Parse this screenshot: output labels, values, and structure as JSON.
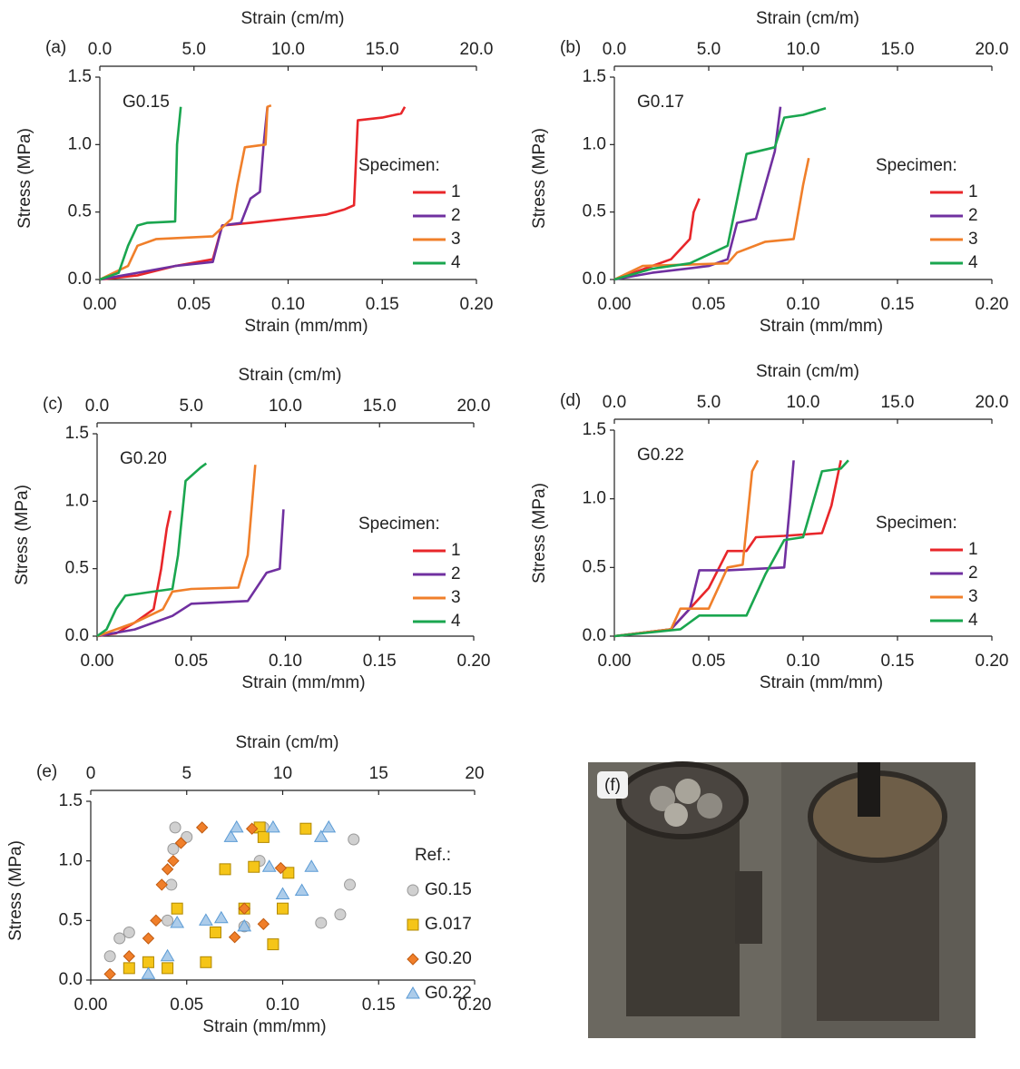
{
  "chart_data": [
    {
      "type": "line",
      "panel_label": "(a)",
      "annotation": "G0.15",
      "title_top": "Strain (cm/m)",
      "xlabel": "Strain (mm/mm)",
      "ylabel": "Stress (MPa)",
      "legend_title": "Specimen:",
      "xlim": [
        0,
        0.2
      ],
      "xticks": [
        {
          "value": 0,
          "label": "0.00"
        },
        0.05,
        {
          "value": 0.1,
          "label": "0.10"
        },
        0.15,
        {
          "value": 0.2,
          "label": "0.20"
        }
      ],
      "x2lim": [
        0,
        20
      ],
      "x2ticks": [
        {
          "value": 0,
          "label": "0.0"
        },
        {
          "value": 5,
          "label": "5.0"
        },
        {
          "value": 10,
          "label": "10.0"
        },
        {
          "value": 15,
          "label": "15.0"
        },
        {
          "value": 20,
          "label": "20.0"
        }
      ],
      "ylim": [
        0,
        1.5
      ],
      "yticks": [
        {
          "value": 0,
          "label": "0.0"
        },
        0.5,
        {
          "value": 1,
          "label": "1.0"
        },
        1.5
      ],
      "series": [
        {
          "name": "1",
          "color": "#e8262a",
          "x": [
            0,
            0.02,
            0.04,
            0.06,
            0.065,
            0.08,
            0.1,
            0.12,
            0.13,
            0.135,
            0.137,
            0.15,
            0.16,
            0.162
          ],
          "values": [
            0,
            0.03,
            0.1,
            0.15,
            0.4,
            0.42,
            0.45,
            0.48,
            0.52,
            0.55,
            1.18,
            1.2,
            1.23,
            1.28
          ]
        },
        {
          "name": "2",
          "color": "#7030a0",
          "x": [
            0,
            0.02,
            0.04,
            0.06,
            0.065,
            0.075,
            0.08,
            0.085,
            0.087,
            0.089
          ],
          "values": [
            0,
            0.05,
            0.1,
            0.13,
            0.4,
            0.42,
            0.6,
            0.65,
            1.0,
            1.28
          ]
        },
        {
          "name": "3",
          "color": "#f07f2a",
          "x": [
            0,
            0.015,
            0.02,
            0.03,
            0.06,
            0.07,
            0.073,
            0.077,
            0.088,
            0.089,
            0.091
          ],
          "values": [
            0,
            0.1,
            0.25,
            0.3,
            0.32,
            0.45,
            0.7,
            0.98,
            1.0,
            1.28,
            1.29
          ]
        },
        {
          "name": "4",
          "color": "#1aa64f",
          "x": [
            0,
            0.01,
            0.015,
            0.02,
            0.025,
            0.04,
            0.041,
            0.043
          ],
          "values": [
            0,
            0.05,
            0.25,
            0.4,
            0.42,
            0.43,
            1.0,
            1.28
          ]
        }
      ]
    },
    {
      "type": "line",
      "panel_label": "(b)",
      "annotation": "G0.17",
      "title_top": "Strain (cm/m)",
      "xlabel": "Strain (mm/mm)",
      "ylabel": "Stress (MPa)",
      "legend_title": "Specimen:",
      "xlim": [
        0,
        0.2
      ],
      "xticks": [
        {
          "value": 0,
          "label": "0.00"
        },
        0.05,
        {
          "value": 0.1,
          "label": "0.10"
        },
        0.15,
        {
          "value": 0.2,
          "label": "0.20"
        }
      ],
      "x2lim": [
        0,
        20
      ],
      "x2ticks": [
        {
          "value": 0,
          "label": "0.0"
        },
        {
          "value": 5,
          "label": "5.0"
        },
        {
          "value": 10,
          "label": "10.0"
        },
        {
          "value": 15,
          "label": "15.0"
        },
        {
          "value": 20,
          "label": "20.0"
        }
      ],
      "ylim": [
        0,
        1.5
      ],
      "yticks": [
        {
          "value": 0,
          "label": "0.0"
        },
        0.5,
        {
          "value": 1,
          "label": "1.0"
        },
        1.5
      ],
      "series": [
        {
          "name": "1",
          "color": "#e8262a",
          "x": [
            0,
            0.02,
            0.03,
            0.04,
            0.042,
            0.045
          ],
          "values": [
            0,
            0.1,
            0.15,
            0.3,
            0.5,
            0.6
          ]
        },
        {
          "name": "2",
          "color": "#7030a0",
          "x": [
            0,
            0.02,
            0.05,
            0.06,
            0.065,
            0.075,
            0.08,
            0.085,
            0.088
          ],
          "values": [
            0,
            0.05,
            0.1,
            0.15,
            0.42,
            0.45,
            0.7,
            0.95,
            1.28
          ]
        },
        {
          "name": "3",
          "color": "#f07f2a",
          "x": [
            0,
            0.015,
            0.06,
            0.065,
            0.08,
            0.095,
            0.1,
            0.103
          ],
          "values": [
            0,
            0.1,
            0.12,
            0.2,
            0.28,
            0.3,
            0.7,
            0.9
          ]
        },
        {
          "name": "4",
          "color": "#1aa64f",
          "x": [
            0,
            0.02,
            0.04,
            0.06,
            0.07,
            0.085,
            0.09,
            0.1,
            0.112
          ],
          "values": [
            0,
            0.08,
            0.12,
            0.25,
            0.93,
            0.98,
            1.2,
            1.22,
            1.27
          ]
        }
      ]
    },
    {
      "type": "line",
      "panel_label": "(c)",
      "annotation": "G0.20",
      "title_top": "Strain (cm/m)",
      "xlabel": "Strain (mm/mm)",
      "ylabel": "Stress (MPa)",
      "legend_title": "Specimen:",
      "xlim": [
        0,
        0.2
      ],
      "xticks": [
        {
          "value": 0,
          "label": "0.00"
        },
        0.05,
        {
          "value": 0.1,
          "label": "0.10"
        },
        0.15,
        {
          "value": 0.2,
          "label": "0.20"
        }
      ],
      "x2lim": [
        0,
        20
      ],
      "x2ticks": [
        {
          "value": 0,
          "label": "0.0"
        },
        {
          "value": 5,
          "label": "5.0"
        },
        {
          "value": 10,
          "label": "10.0"
        },
        {
          "value": 15,
          "label": "15.0"
        },
        {
          "value": 20,
          "label": "20.0"
        }
      ],
      "ylim": [
        0,
        1.5
      ],
      "yticks": [
        {
          "value": 0,
          "label": "0.0"
        },
        0.5,
        {
          "value": 1,
          "label": "1.0"
        },
        1.5
      ],
      "series": [
        {
          "name": "1",
          "color": "#e8262a",
          "x": [
            0,
            0.01,
            0.02,
            0.03,
            0.034,
            0.037,
            0.039
          ],
          "values": [
            0,
            0.02,
            0.1,
            0.2,
            0.5,
            0.8,
            0.93
          ]
        },
        {
          "name": "2",
          "color": "#7030a0",
          "x": [
            0,
            0.02,
            0.04,
            0.05,
            0.08,
            0.09,
            0.097,
            0.099
          ],
          "values": [
            0,
            0.05,
            0.15,
            0.24,
            0.26,
            0.47,
            0.5,
            0.94
          ]
        },
        {
          "name": "3",
          "color": "#f07f2a",
          "x": [
            0,
            0.02,
            0.035,
            0.04,
            0.05,
            0.075,
            0.08,
            0.084
          ],
          "values": [
            0,
            0.1,
            0.2,
            0.33,
            0.35,
            0.36,
            0.6,
            1.27
          ]
        },
        {
          "name": "4",
          "color": "#1aa64f",
          "x": [
            0,
            0.005,
            0.01,
            0.015,
            0.03,
            0.04,
            0.043,
            0.047,
            0.055,
            0.058
          ],
          "values": [
            0,
            0.05,
            0.2,
            0.3,
            0.33,
            0.35,
            0.6,
            1.15,
            1.25,
            1.28
          ]
        }
      ]
    },
    {
      "type": "line",
      "panel_label": "(d)",
      "annotation": "G0.22",
      "title_top": "Strain (cm/m)",
      "xlabel": "Strain (mm/mm)",
      "ylabel": "Stress (MPa)",
      "legend_title": "Specimen:",
      "xlim": [
        0,
        0.2
      ],
      "xticks": [
        {
          "value": 0,
          "label": "0.00"
        },
        0.05,
        {
          "value": 0.1,
          "label": "0.10"
        },
        0.15,
        {
          "value": 0.2,
          "label": "0.20"
        }
      ],
      "x2lim": [
        0,
        20
      ],
      "x2ticks": [
        {
          "value": 0,
          "label": "0.0"
        },
        {
          "value": 5,
          "label": "5.0"
        },
        {
          "value": 10,
          "label": "10.0"
        },
        {
          "value": 15,
          "label": "15.0"
        },
        {
          "value": 20,
          "label": "20.0"
        }
      ],
      "ylim": [
        0,
        1.5
      ],
      "yticks": [
        {
          "value": 0,
          "label": "0.0"
        },
        0.5,
        {
          "value": 1,
          "label": "1.0"
        },
        1.5
      ],
      "series": [
        {
          "name": "1",
          "color": "#e8262a",
          "x": [
            0,
            0.03,
            0.04,
            0.05,
            0.06,
            0.07,
            0.075,
            0.09,
            0.11,
            0.115,
            0.12
          ],
          "values": [
            0,
            0.05,
            0.2,
            0.35,
            0.62,
            0.62,
            0.72,
            0.73,
            0.75,
            0.95,
            1.28
          ]
        },
        {
          "name": "2",
          "color": "#7030a0",
          "x": [
            0,
            0.03,
            0.04,
            0.045,
            0.06,
            0.09,
            0.093,
            0.095
          ],
          "values": [
            0,
            0.05,
            0.2,
            0.48,
            0.48,
            0.5,
            0.95,
            1.28
          ]
        },
        {
          "name": "3",
          "color": "#f07f2a",
          "x": [
            0,
            0.03,
            0.035,
            0.05,
            0.06,
            0.068,
            0.073,
            0.076
          ],
          "values": [
            0,
            0.05,
            0.2,
            0.2,
            0.5,
            0.52,
            1.2,
            1.28
          ]
        },
        {
          "name": "4",
          "color": "#1aa64f",
          "x": [
            0,
            0.035,
            0.045,
            0.07,
            0.08,
            0.09,
            0.1,
            0.11,
            0.12,
            0.124
          ],
          "values": [
            0,
            0.05,
            0.15,
            0.15,
            0.45,
            0.7,
            0.72,
            1.2,
            1.22,
            1.28
          ]
        }
      ]
    },
    {
      "type": "scatter",
      "panel_label": "(e)",
      "title_top": "Strain (cm/m)",
      "xlabel": "Strain (mm/mm)",
      "ylabel": "Stress (MPa)",
      "legend_title": "Ref.:",
      "xlim": [
        0,
        0.2
      ],
      "xticks": [
        {
          "value": 0,
          "label": "0.00"
        },
        0.05,
        {
          "value": 0.1,
          "label": "0.10"
        },
        0.15,
        {
          "value": 0.2,
          "label": "0.20"
        }
      ],
      "x2lim": [
        0,
        20
      ],
      "x2ticks": [
        0,
        5,
        10,
        15,
        20
      ],
      "ylim": [
        0,
        1.5
      ],
      "yticks": [
        {
          "value": 0,
          "label": "0.0"
        },
        0.5,
        {
          "value": 1,
          "label": "1.0"
        },
        1.5
      ],
      "series": [
        {
          "name": "G0.15",
          "color": "#c8c8c8",
          "marker": "circle",
          "x": [
            0.01,
            0.015,
            0.02,
            0.04,
            0.042,
            0.043,
            0.044,
            0.05,
            0.065,
            0.08,
            0.088,
            0.09,
            0.12,
            0.13,
            0.135,
            0.137
          ],
          "values": [
            0.2,
            0.35,
            0.4,
            0.5,
            0.8,
            1.1,
            1.28,
            1.2,
            0.4,
            0.45,
            1.0,
            1.28,
            0.48,
            0.55,
            0.8,
            1.18
          ]
        },
        {
          "name": "G.017",
          "color": "#f5c518",
          "marker": "square",
          "x": [
            0.02,
            0.03,
            0.04,
            0.045,
            0.06,
            0.065,
            0.07,
            0.08,
            0.085,
            0.088,
            0.09,
            0.095,
            0.1,
            0.103,
            0.112
          ],
          "values": [
            0.1,
            0.15,
            0.1,
            0.6,
            0.15,
            0.4,
            0.93,
            0.6,
            0.95,
            1.28,
            1.2,
            0.3,
            0.6,
            0.9,
            1.27
          ]
        },
        {
          "name": "G0.20",
          "color": "#f07f2a",
          "marker": "diamond",
          "x": [
            0.01,
            0.02,
            0.03,
            0.034,
            0.037,
            0.04,
            0.043,
            0.047,
            0.058,
            0.075,
            0.08,
            0.084,
            0.09,
            0.099
          ],
          "values": [
            0.05,
            0.2,
            0.35,
            0.5,
            0.8,
            0.93,
            1.0,
            1.15,
            1.28,
            0.36,
            0.6,
            1.27,
            0.47,
            0.94
          ]
        },
        {
          "name": "G0.22",
          "color": "#9dc3e6",
          "marker": "triangle",
          "x": [
            0.03,
            0.04,
            0.045,
            0.06,
            0.068,
            0.073,
            0.076,
            0.08,
            0.093,
            0.095,
            0.1,
            0.11,
            0.115,
            0.12,
            0.124
          ],
          "values": [
            0.05,
            0.2,
            0.48,
            0.5,
            0.52,
            1.2,
            1.28,
            0.45,
            0.95,
            1.28,
            0.72,
            0.75,
            0.95,
            1.2,
            1.28
          ]
        }
      ]
    }
  ],
  "photo": {
    "label": "(f)"
  }
}
